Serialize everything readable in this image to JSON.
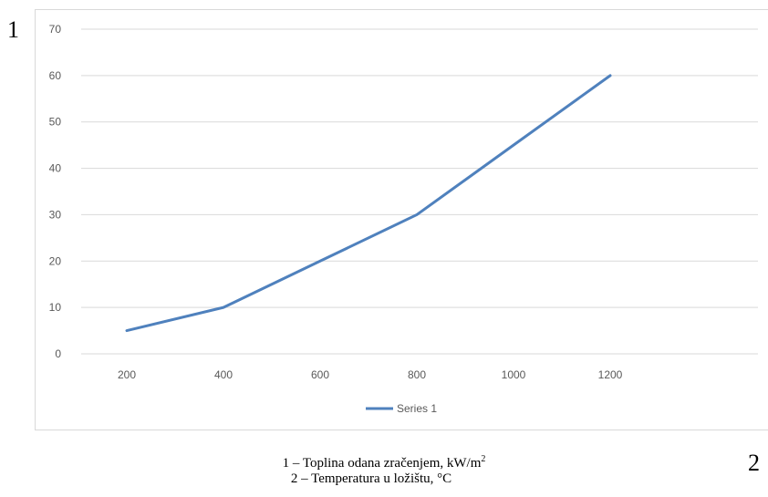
{
  "axis_numbers": {
    "y": "1",
    "x": "2"
  },
  "caption": {
    "line1_prefix": "1 – Toplina odana zračenjem,  kW/m",
    "line1_sup": "2",
    "line2": "2 – Temperatura u ložištu,  °C"
  },
  "chart_data": {
    "type": "line",
    "categories": [
      "200",
      "400",
      "600",
      "800",
      "1000",
      "1200"
    ],
    "series": [
      {
        "name": "Series 1",
        "values": [
          5,
          10,
          20,
          30,
          45,
          60
        ],
        "color": "#4f81bd"
      }
    ],
    "y_ticks": [
      0,
      10,
      20,
      30,
      40,
      50,
      60,
      70
    ],
    "ylim": [
      0,
      70
    ],
    "grid": true,
    "legend": "bottom"
  }
}
